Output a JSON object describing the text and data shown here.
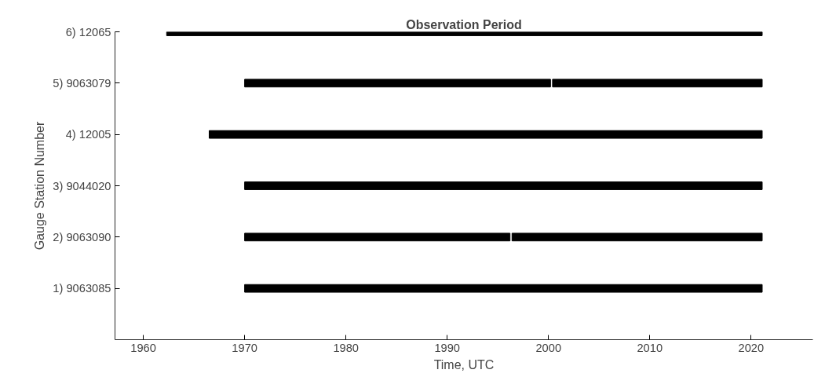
{
  "chart_data": {
    "type": "bar",
    "orientation": "horizontal",
    "title": "Observation Period",
    "xlabel": "Time, UTC",
    "ylabel": "Gauge Station Number",
    "categories": [
      "6) 12065",
      "5) 9063079",
      "4) 12005",
      "3) 9044020",
      "2) 9063090",
      "1) 9063085"
    ],
    "series": [
      {
        "color": "#000000",
        "base": [
          1962.3,
          1970,
          1966.5,
          1970,
          1970,
          1970
        ],
        "values": [
          58.8,
          30.2,
          54.6,
          51.1,
          26.2,
          51.1
        ]
      },
      {
        "color": "#000000",
        "base": [
          null,
          2000.4,
          null,
          null,
          1996.4,
          null
        ],
        "values": [
          null,
          20.7,
          null,
          null,
          24.7,
          null
        ]
      }
    ],
    "xlim": [
      1957.2,
      2026.1
    ],
    "xticks": [
      1960,
      1970,
      1980,
      1990,
      2000,
      2010,
      2020
    ],
    "grid": false
  }
}
